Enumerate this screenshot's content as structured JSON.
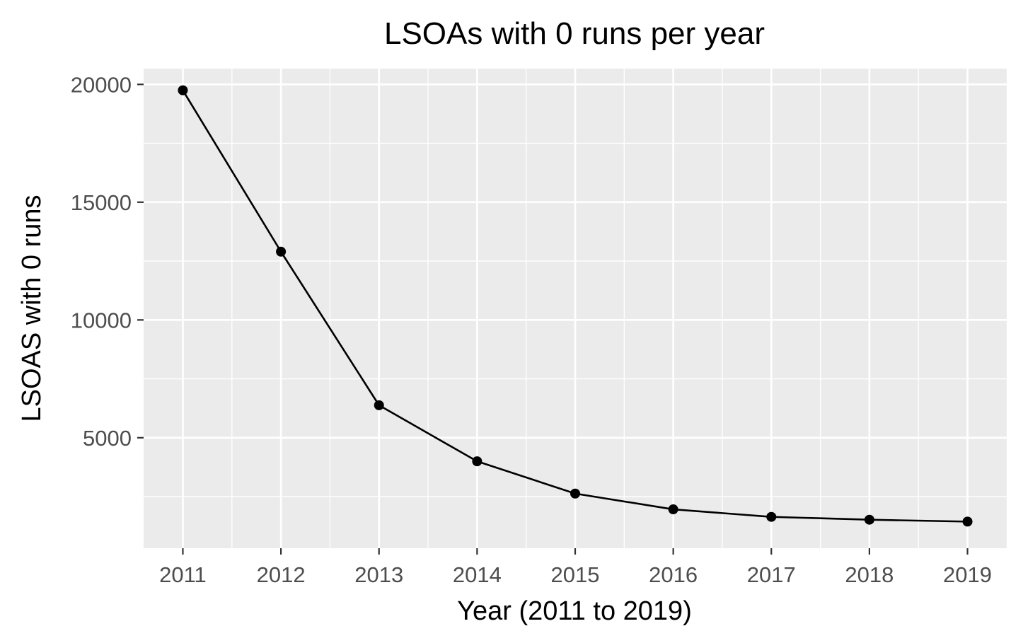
{
  "chart_data": {
    "type": "line",
    "title": "LSOAs with 0 runs per year",
    "xlabel": "Year (2011 to 2019)",
    "ylabel": "LSOAS with 0 runs",
    "x": [
      2011,
      2012,
      2013,
      2014,
      2015,
      2016,
      2017,
      2018,
      2019
    ],
    "series": [
      {
        "values": [
          19750,
          12900,
          6380,
          4000,
          2630,
          1960,
          1640,
          1520,
          1440
        ]
      }
    ],
    "xlim": [
      2010.6,
      2019.4
    ],
    "ylim": [
      310,
      20670
    ],
    "x_ticks": [
      "2011",
      "2012",
      "2013",
      "2014",
      "2015",
      "2016",
      "2017",
      "2018",
      "2019"
    ],
    "y_ticks": [
      "5000",
      "10000",
      "15000",
      "20000"
    ],
    "grid": true,
    "legend": "none",
    "colors": {
      "panel_background": "#EBEBEB",
      "grid": "#FFFFFF",
      "line": "#000000",
      "points": "#000000",
      "tick_text": "#4D4D4D",
      "tick_marks": "#333333"
    }
  }
}
